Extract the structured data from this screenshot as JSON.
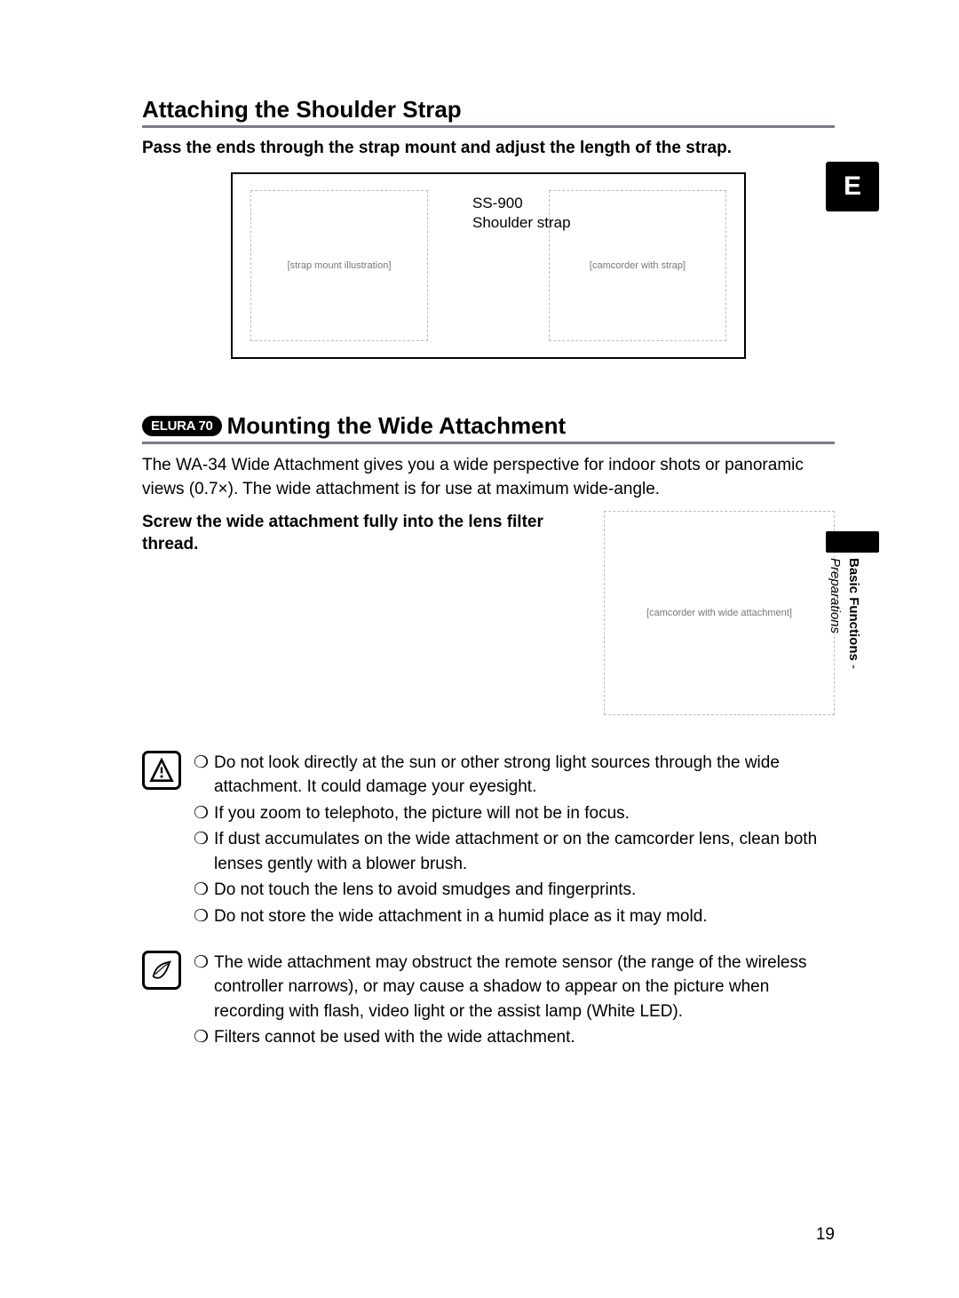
{
  "page": {
    "number": "19",
    "side_tab": "E",
    "side_label_bold": "Basic Functions",
    "side_label_sep": " - ",
    "side_label_italic": "Preparations"
  },
  "section1": {
    "heading": "Attaching the Shoulder Strap",
    "lead": "Pass the ends through the strap mount and adjust the length of the strap.",
    "figure": {
      "product_model": "SS-900",
      "product_name": "Shoulder strap",
      "left_alt": "[strap mount illustration]",
      "right_alt": "[camcorder with strap]"
    }
  },
  "section2": {
    "badge": "ELURA 70",
    "heading": "Mounting the Wide Attachment",
    "body": "The WA-34 Wide Attachment gives you a wide perspective for indoor shots or panoramic views (0.7×). The wide attachment is for use at maximum wide-angle.",
    "instruction": "Screw the wide attachment fully into the lens filter thread.",
    "figure_alt": "[camcorder with wide attachment]"
  },
  "warnings": {
    "items": [
      "Do not look directly at the sun or other strong light sources through the wide attachment. It could damage your eyesight.",
      "If you zoom to telephoto, the picture will not be in focus.",
      "If dust accumulates on the wide attachment or on the camcorder lens, clean both lenses gently with a blower brush.",
      "Do not touch the lens to avoid smudges and fingerprints.",
      "Do not store the wide attachment in a humid place as it may mold."
    ]
  },
  "notes": {
    "items": [
      "The wide attachment may obstruct the remote sensor (the range of the wireless controller narrows), or may cause a shadow to appear on the picture when recording with flash, video light or the assist lamp (White LED).",
      "Filters cannot be used with the wide attachment."
    ]
  },
  "glyphs": {
    "bullet": "❍"
  },
  "colors": {
    "heading_underline": "#7a7a8a",
    "text": "#000000",
    "background": "#ffffff"
  },
  "fonts": {
    "heading_size_pt": 20,
    "body_size_pt": 14
  }
}
